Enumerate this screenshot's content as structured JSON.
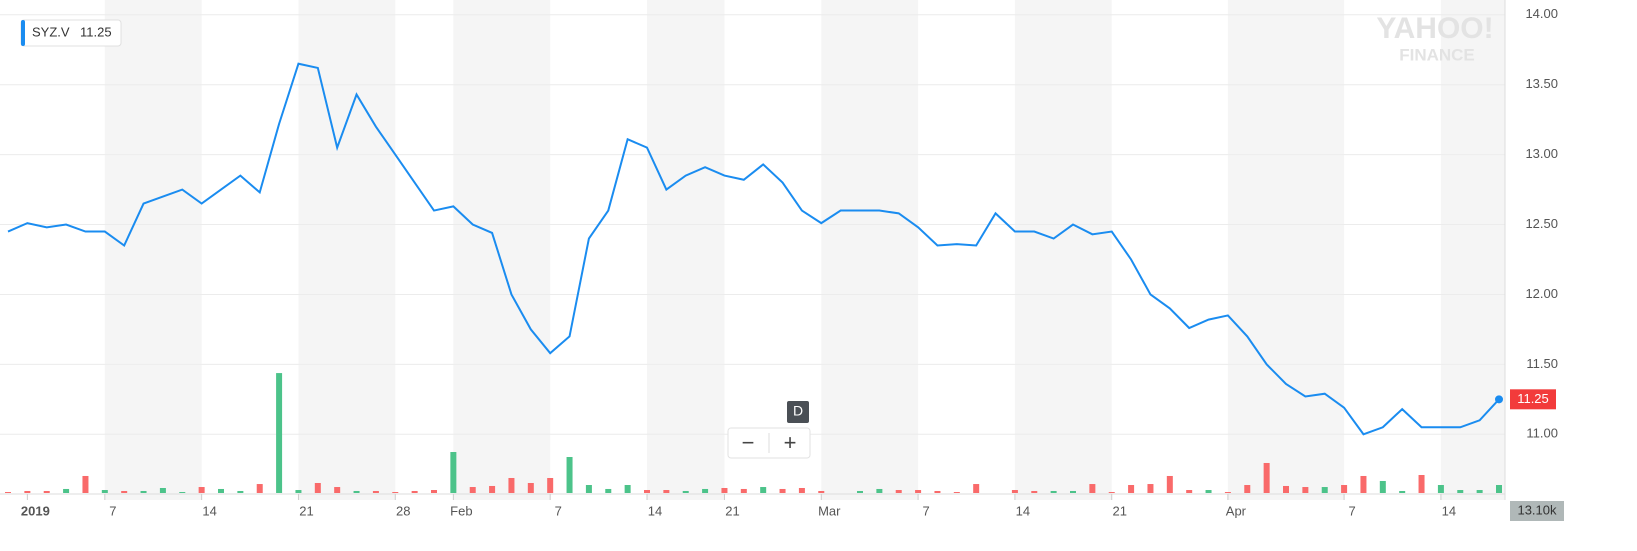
{
  "chart_data": {
    "type": "line",
    "categories": [
      null,
      "2019",
      null,
      null,
      null,
      "7",
      null,
      null,
      null,
      null,
      "14",
      null,
      null,
      null,
      null,
      "21",
      null,
      null,
      null,
      null,
      "28",
      null,
      null,
      "Feb",
      null,
      null,
      null,
      null,
      "7",
      null,
      null,
      null,
      null,
      "14",
      null,
      null,
      null,
      "21",
      null,
      null,
      null,
      null,
      "Mar",
      null,
      null,
      null,
      null,
      "7",
      null,
      null,
      null,
      null,
      "14",
      null,
      null,
      null,
      null,
      "21",
      null,
      null,
      null,
      null,
      null,
      "Apr",
      null,
      null,
      null,
      null,
      null,
      "7",
      null,
      null,
      null,
      null,
      "14",
      null,
      null,
      null
    ],
    "series": [
      {
        "name": "SYZ.V",
        "color": "#1a8cf0",
        "values": [
          12.45,
          12.51,
          12.48,
          12.5,
          12.45,
          12.45,
          12.35,
          12.65,
          12.7,
          12.75,
          12.65,
          12.75,
          12.85,
          12.73,
          13.22,
          13.65,
          13.62,
          13.05,
          13.43,
          13.2,
          13.0,
          12.8,
          12.6,
          12.63,
          12.5,
          12.44,
          12.0,
          11.75,
          11.58,
          11.7,
          12.4,
          12.6,
          13.11,
          13.05,
          12.75,
          12.85,
          12.91,
          12.85,
          12.82,
          12.93,
          12.8,
          12.6,
          12.51,
          12.6,
          12.6,
          12.6,
          12.58,
          12.48,
          12.35,
          12.36,
          12.35,
          12.58,
          12.45,
          12.45,
          12.4,
          12.5,
          12.43,
          12.45,
          12.25,
          12.0,
          11.9,
          11.76,
          11.82,
          11.85,
          11.7,
          11.5,
          11.36,
          11.27,
          11.29,
          11.19,
          11.0,
          11.05,
          11.18,
          11.05,
          11.05,
          11.05,
          11.1,
          11.25
        ]
      }
    ],
    "volume": {
      "values": [
        1.6,
        3.3,
        3.3,
        6.6,
        27.9,
        4.9,
        3.3,
        3.3,
        8.2,
        1.6,
        9.8,
        6.6,
        3.3,
        14.7,
        196.6,
        4.9,
        16.4,
        9.8,
        3.3,
        3.3,
        1.6,
        3.3,
        4.9,
        67.2,
        9.8,
        11.5,
        24.6,
        16.4,
        24.6,
        59,
        13.1,
        6.6,
        13.1,
        4.9,
        4.9,
        3.3,
        6.6,
        8.2,
        6.6,
        9.8,
        6.6,
        8.2,
        3.3,
        0,
        3.3,
        6.6,
        4.9,
        4.9,
        3.3,
        1.6,
        14.7,
        0,
        4.9,
        3.3,
        3.3,
        3.3,
        14.7,
        1.6,
        13.1,
        14.7,
        27.9,
        4.9,
        4.9,
        1.6,
        13.1,
        49.2,
        11.5,
        9.8,
        9.8,
        13.1,
        27.9,
        19.7,
        3.3,
        29.5,
        13.1,
        4.9,
        4.9,
        13.1
      ],
      "colors": [
        "#f96a6a",
        "#f96a6a",
        "#f96a6a",
        "#4cc38a",
        "#f96a6a",
        "#4cc38a",
        "#f96a6a",
        "#4cc38a",
        "#4cc38a",
        "#4cc38a",
        "#f96a6a",
        "#4cc38a",
        "#4cc38a",
        "#f96a6a",
        "#4cc38a",
        "#4cc38a",
        "#f96a6a",
        "#f96a6a",
        "#4cc38a",
        "#f96a6a",
        "#f96a6a",
        "#f96a6a",
        "#f96a6a",
        "#4cc38a",
        "#f96a6a",
        "#f96a6a",
        "#f96a6a",
        "#f96a6a",
        "#f96a6a",
        "#4cc38a",
        "#4cc38a",
        "#4cc38a",
        "#4cc38a",
        "#f96a6a",
        "#f96a6a",
        "#4cc38a",
        "#4cc38a",
        "#f96a6a",
        "#f96a6a",
        "#4cc38a",
        "#f96a6a",
        "#f96a6a",
        "#f96a6a",
        "#f96a6a",
        "#4cc38a",
        "#4cc38a",
        "#f96a6a",
        "#f96a6a",
        "#f96a6a",
        "#f96a6a",
        "#f96a6a",
        "#f96a6a",
        "#f96a6a",
        "#f96a6a",
        "#4cc38a",
        "#4cc38a",
        "#f96a6a",
        "#f96a6a",
        "#f96a6a",
        "#f96a6a",
        "#f96a6a",
        "#f96a6a",
        "#4cc38a",
        "#f96a6a",
        "#f96a6a",
        "#f96a6a",
        "#f96a6a",
        "#f96a6a",
        "#4cc38a",
        "#f96a6a",
        "#f96a6a",
        "#4cc38a",
        "#4cc38a",
        "#f96a6a",
        "#4cc38a",
        "#4cc38a",
        "#4cc38a",
        "#4cc38a"
      ],
      "vlim": [
        0,
        800
      ],
      "last_label": "13.10k"
    },
    "ylim": [
      10.58,
      14.07
    ],
    "yticks": [
      {
        "value": 11,
        "label": "11.00"
      },
      {
        "value": 11.5,
        "label": "11.50"
      },
      {
        "value": 12,
        "label": "12.00"
      },
      {
        "value": 12.5,
        "label": "12.50"
      },
      {
        "value": 13,
        "label": "13.00"
      },
      {
        "value": 13.5,
        "label": "13.50"
      },
      {
        "value": 14,
        "label": "14.00"
      }
    ],
    "grid": true
  },
  "ui": {
    "interval": "D",
    "zoom_out": "−",
    "zoom_in": "+",
    "watermark": [
      "YAHOO!",
      "FINANCE"
    ]
  }
}
